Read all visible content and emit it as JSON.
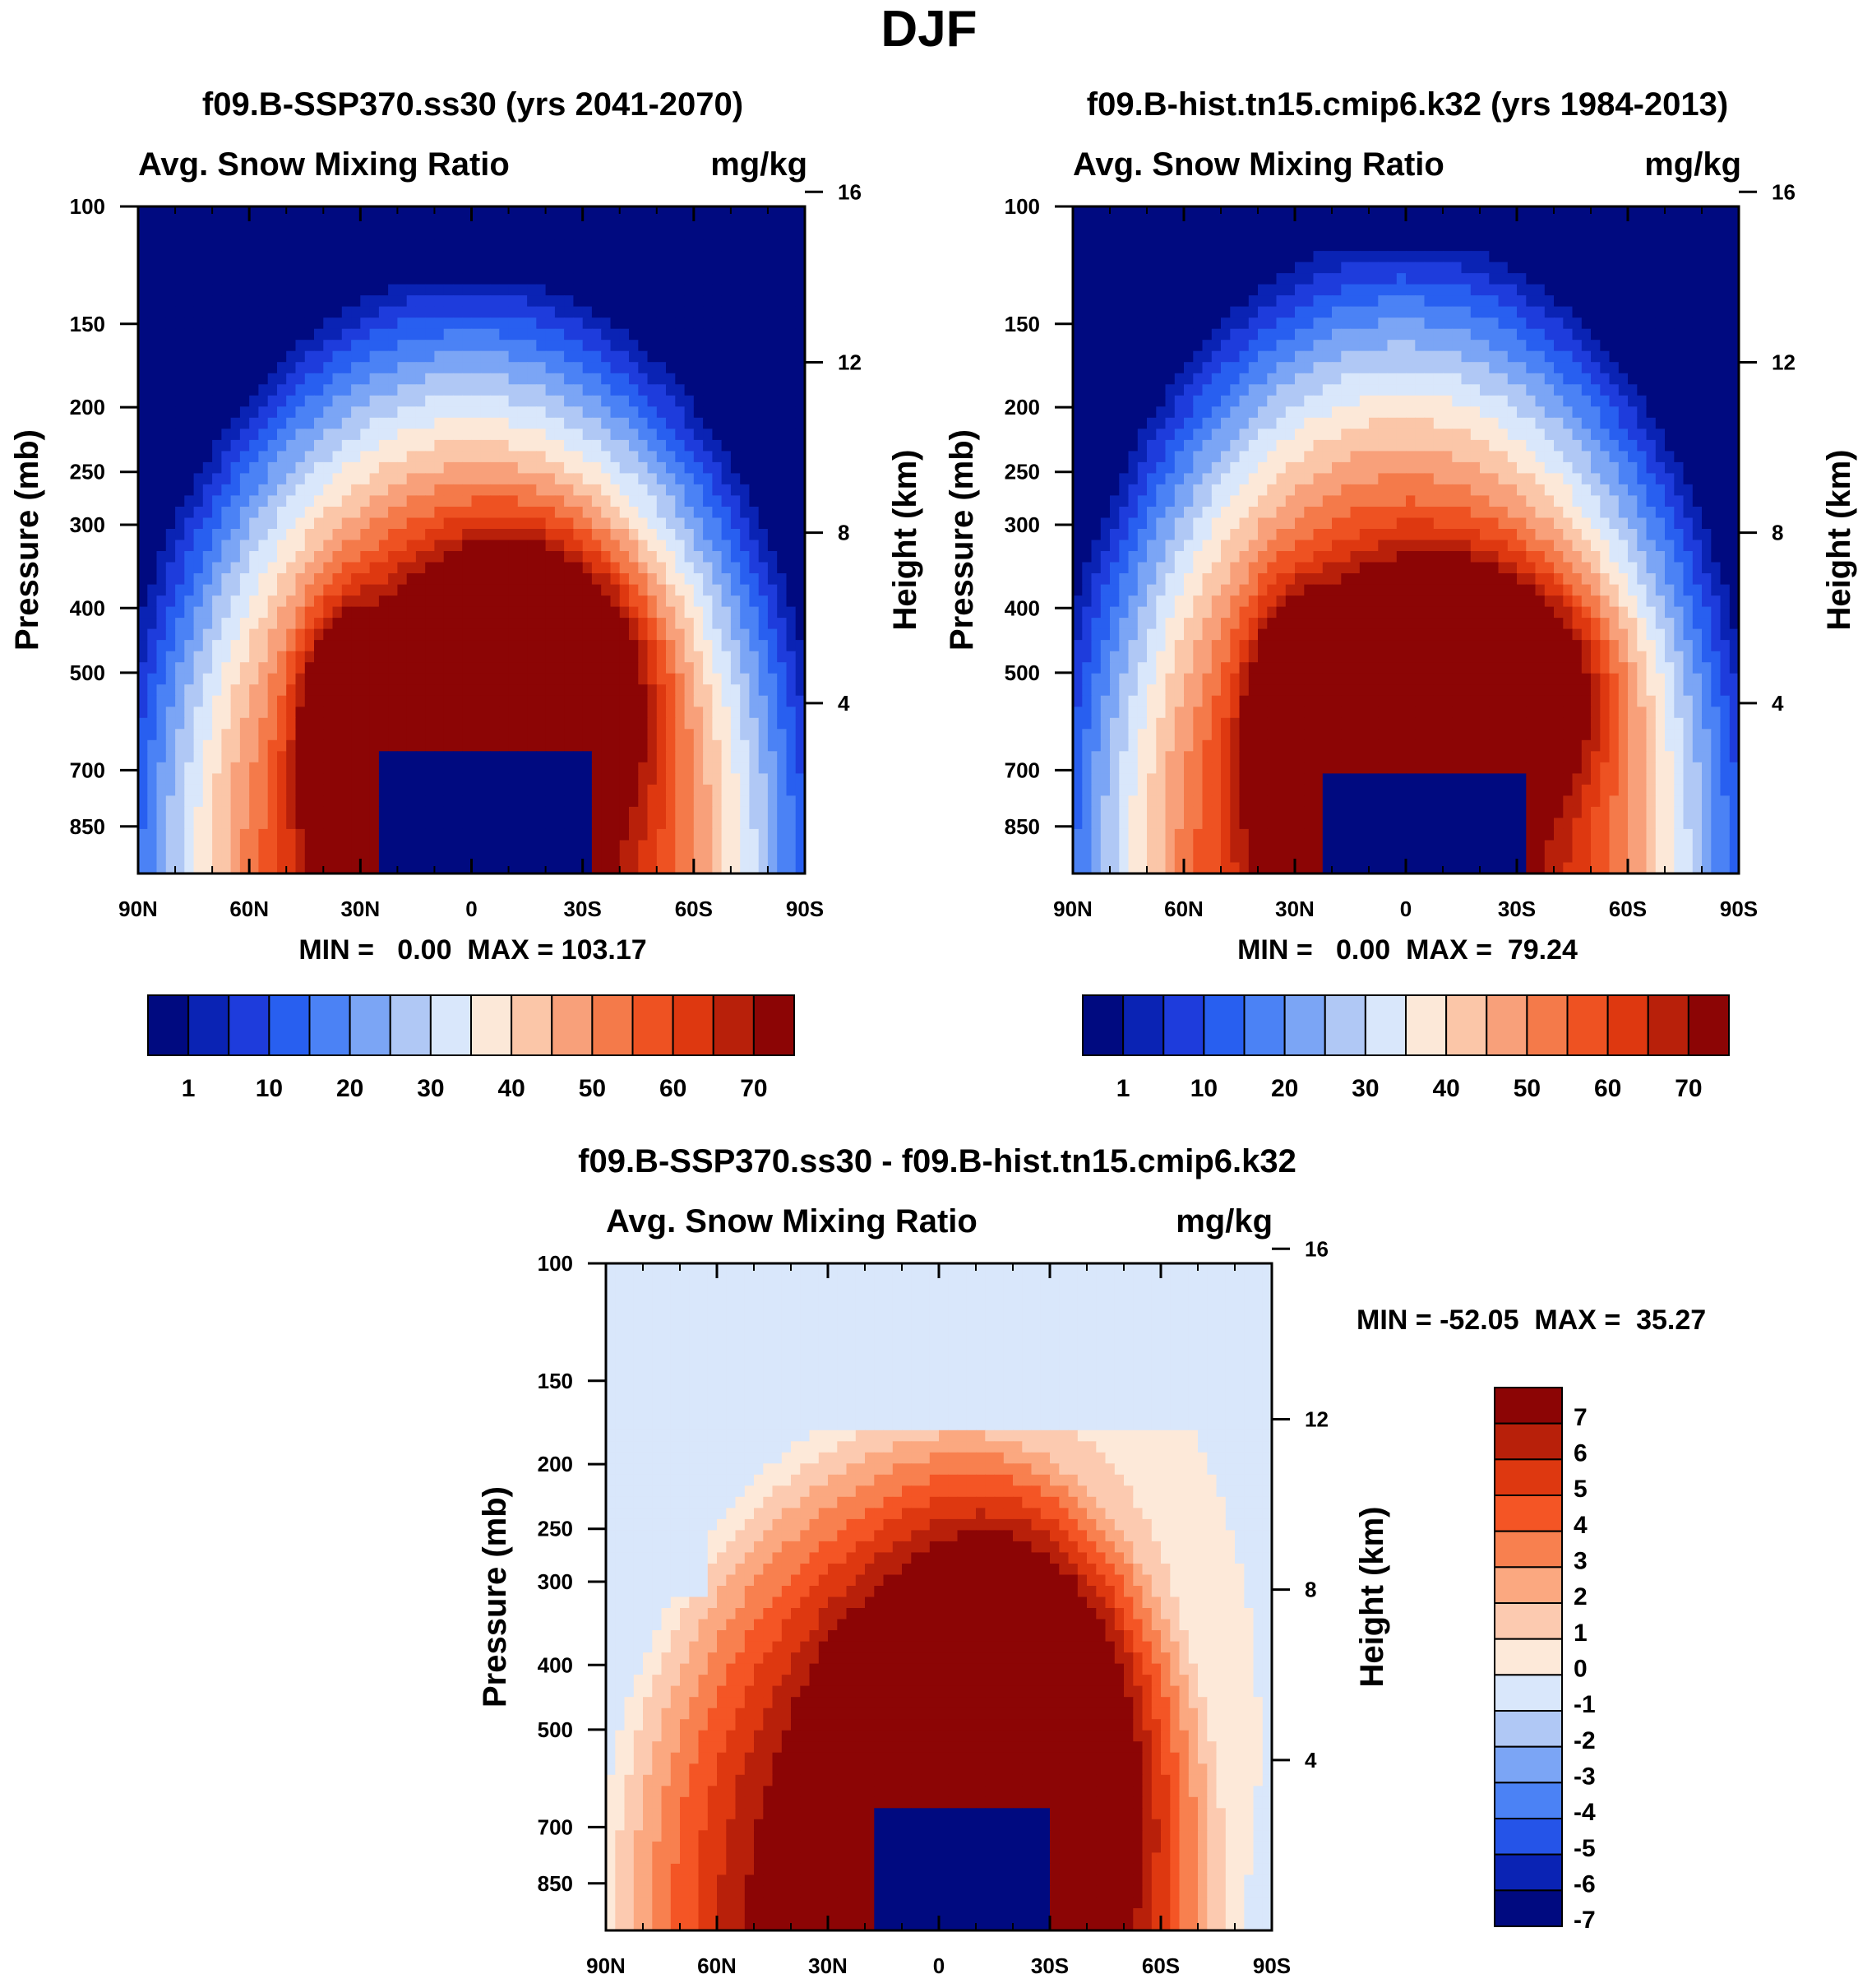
{
  "main_title": "DJF",
  "chart_data": [
    {
      "type": "contour",
      "id": "p1",
      "title": "f09.B-SSP370.ss30 (yrs 2041-2070)",
      "left_label": "Avg. Snow Mixing Ratio",
      "right_label": "mg/kg",
      "ylabel": "Pressure (mb)",
      "y2label": "Height (km)",
      "x_ticks": [
        "90N",
        "60N",
        "30N",
        "0",
        "30S",
        "60S",
        "90S"
      ],
      "xlim": [
        90,
        -90
      ],
      "y_ticks": [
        100,
        150,
        200,
        250,
        300,
        400,
        500,
        700,
        850
      ],
      "ylim": [
        100,
        1000
      ],
      "y2_ticks": [
        16,
        12,
        8,
        4
      ],
      "stats": "MIN =   0.00  MAX = 103.17",
      "colorbar_labels": [
        "1",
        "10",
        "20",
        "30",
        "40",
        "50",
        "60",
        "70"
      ],
      "colorbar_colors": [
        "#000a80",
        "#0a23b4",
        "#1e3cdc",
        "#285ff0",
        "#4b82f5",
        "#7ba5f5",
        "#b0c8f5",
        "#d9e7fb",
        "#fce8d8",
        "#fbc6a8",
        "#f8a07a",
        "#f47a4a",
        "#ee5222",
        "#de3810",
        "#b8200a",
        "#8c0505"
      ],
      "shape": {
        "outer_left": -88,
        "outer_right": 86,
        "outer_top": 130,
        "core_left": -18,
        "core_right": 44,
        "core_top": 330,
        "lobe_lat": -34,
        "hole_left": -25,
        "hole_right": 32,
        "hole_top": 650
      }
    },
    {
      "type": "contour",
      "id": "p2",
      "title": "f09.B-hist.tn15.cmip6.k32 (yrs 1984-2013)",
      "left_label": "Avg. Snow Mixing Ratio",
      "right_label": "mg/kg",
      "ylabel": "Pressure (mb)",
      "y2label": "Height (km)",
      "x_ticks": [
        "90N",
        "60N",
        "30N",
        "0",
        "30S",
        "60S",
        "90S"
      ],
      "xlim": [
        90,
        -90
      ],
      "y_ticks": [
        100,
        150,
        200,
        250,
        300,
        400,
        500,
        700,
        850
      ],
      "ylim": [
        100,
        1000
      ],
      "y2_ticks": [
        16,
        12,
        8,
        4
      ],
      "stats": "MIN =   0.00  MAX =  79.24",
      "colorbar_labels": [
        "1",
        "10",
        "20",
        "30",
        "40",
        "50",
        "60",
        "70"
      ],
      "colorbar_colors": [
        "#000a80",
        "#0a23b4",
        "#1e3cdc",
        "#285ff0",
        "#4b82f5",
        "#7ba5f5",
        "#b0c8f5",
        "#d9e7fb",
        "#fce8d8",
        "#fbc6a8",
        "#f8a07a",
        "#f47a4a",
        "#ee5222",
        "#de3810",
        "#b8200a",
        "#8c0505"
      ],
      "shape": {
        "outer_left": -88,
        "outer_right": 86,
        "outer_top": 115,
        "core_left": -22,
        "core_right": 48,
        "core_top": 360,
        "lobe_lat": -30,
        "hole_left": -22,
        "hole_right": 32,
        "hole_top": 720
      }
    },
    {
      "type": "contour",
      "id": "p3",
      "title": "f09.B-SSP370.ss30 - f09.B-hist.tn15.cmip6.k32",
      "left_label": "Avg. Snow Mixing Ratio",
      "right_label": "mg/kg",
      "ylabel": "Pressure (mb)",
      "y2label": "Height (km)",
      "x_ticks": [
        "90N",
        "60N",
        "30N",
        "0",
        "30S",
        "60S",
        "90S"
      ],
      "xlim": [
        90,
        -90
      ],
      "y_ticks": [
        100,
        150,
        200,
        250,
        300,
        400,
        500,
        700,
        850
      ],
      "ylim": [
        100,
        1000
      ],
      "y2_ticks": [
        16,
        12,
        8,
        4
      ],
      "stats": "MIN = -52.05  MAX =  35.27",
      "colorbar_labels": [
        "7",
        "6",
        "5",
        "4",
        "3",
        "2",
        "1",
        "0",
        "-1",
        "-2",
        "-3",
        "-4",
        "-5",
        "-6",
        "-7"
      ],
      "colorbar_colors": [
        "#8c0505",
        "#b8200a",
        "#de3810",
        "#f45525",
        "#f8804f",
        "#fba880",
        "#fccab0",
        "#fde9d9",
        "#d9e7fb",
        "#b0c8f5",
        "#7ba5f5",
        "#4b82f5",
        "#2554e8",
        "#0a23b4",
        "#000a80"
      ],
      "shape": {
        "outer_left": -82,
        "outer_right": 70,
        "outer_top": 175,
        "core_left": -18,
        "core_right": 60,
        "core_top": 205,
        "lobe_lat": -22,
        "hole_left": -18,
        "hole_right": 30,
        "hole_top": 660
      }
    }
  ]
}
